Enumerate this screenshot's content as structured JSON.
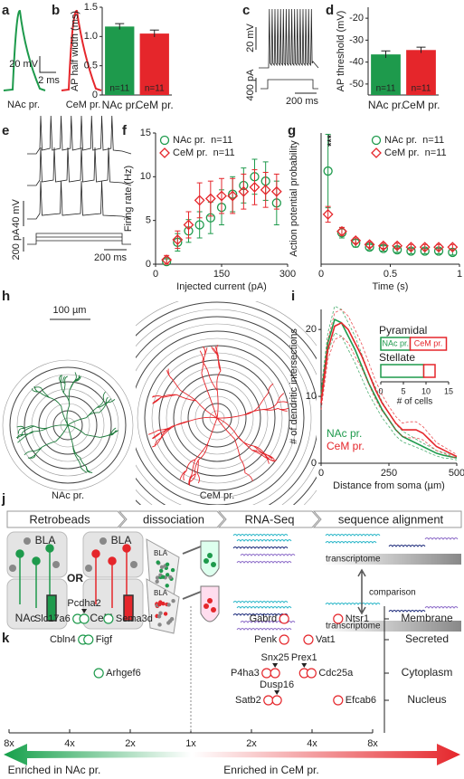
{
  "panel_labels": [
    "a",
    "b",
    "c",
    "d",
    "e",
    "f",
    "g",
    "h",
    "i",
    "j",
    "k"
  ],
  "traces": {
    "a": {
      "scale_v": "20 mV",
      "scale_t": "2 ms",
      "labels": [
        "NAc pr.",
        "CeM pr."
      ]
    },
    "c": {
      "scale_v": "20 mV",
      "scale_i": "400 pA",
      "scale_t": "200 ms"
    },
    "e": {
      "scale_v": "40 mV",
      "scale_i": "200 pA",
      "scale_t": "200 ms"
    }
  },
  "morphology": {
    "scale": "100 µm",
    "labels": [
      "NAc pr.",
      "CeM pr."
    ]
  },
  "workflow": {
    "steps": [
      "Retrobeads",
      "dissociation",
      "RNA-Seq",
      "sequence alignment"
    ],
    "regions": [
      "BLA",
      "NAc",
      "BLA",
      "CeM"
    ],
    "or": "OR",
    "slices": [
      "BLA",
      "BLA"
    ],
    "reference": [
      "transcriptome",
      "transcriptome"
    ],
    "comparison": "comparison"
  },
  "chart_data": [
    {
      "type": "bar",
      "y_label": "AP half width (ms)",
      "categories": [
        "NAc pr.",
        "CeM pr."
      ],
      "values": [
        1.17,
        1.05
      ],
      "errors": [
        0.05,
        0.06
      ],
      "colors": [
        "#1e9a4c",
        "#e5262b"
      ],
      "bar_labels": [
        "n=11",
        "n=11"
      ],
      "ylim": [
        0,
        1.5
      ],
      "yticks": [
        0,
        0.5,
        {
          "value": 1,
          "label": "1.0"
        },
        1.5
      ]
    },
    {
      "type": "bar",
      "y_label": "AP threshold (mV)",
      "categories": [
        "NAc pr.",
        "CeM pr."
      ],
      "values": [
        -36.5,
        -34.5
      ],
      "errors": [
        1.6,
        1.3
      ],
      "colors": [
        "#1e9a4c",
        "#e5262b"
      ],
      "bar_labels": [
        "n=11",
        "n=11"
      ],
      "ylim": [
        -55,
        -15
      ],
      "yticks": [
        -50,
        -40,
        -30,
        -20
      ]
    },
    {
      "type": "line",
      "x_label": "Injected current (pA)",
      "y_label": "Firing rate (Hz)",
      "legend": "upper left",
      "x": [
        25,
        50,
        75,
        100,
        125,
        150,
        175,
        200,
        225,
        250,
        275
      ],
      "series": [
        {
          "name": "NAc pr.  n=11",
          "color": "#1e9a4c",
          "marker": "circle",
          "values": [
            0.3,
            2.5,
            3.8,
            4.5,
            5.3,
            6.5,
            8,
            9,
            10,
            9.5,
            7
          ],
          "errors": [
            0.3,
            1,
            1.3,
            1.5,
            1.8,
            2,
            2,
            2,
            2,
            2.2,
            2.5
          ]
        },
        {
          "name": "CeM pr.  n=11",
          "color": "#e5262b",
          "marker": "diamond",
          "values": [
            0.5,
            2.8,
            4.5,
            7.3,
            7.5,
            7.8,
            7.8,
            8.3,
            8.8,
            8.5,
            8.3
          ],
          "errors": [
            0.5,
            1,
            1.5,
            2,
            2,
            2,
            2,
            2,
            2,
            2,
            2
          ]
        }
      ],
      "xlim": [
        0,
        300
      ],
      "xticks": [
        0,
        150,
        300
      ],
      "ylim": [
        0,
        15
      ],
      "yticks": [
        0,
        5,
        10,
        15
      ]
    },
    {
      "type": "line",
      "x_label": "Time (s)",
      "y_label": "Action potential probability",
      "annotation": "***",
      "legend": "upper right",
      "x": [
        0.05,
        0.15,
        0.25,
        0.35,
        0.45,
        0.55,
        0.65,
        0.75,
        0.85,
        0.95
      ],
      "series": [
        {
          "name": "NAc pr.  n=11",
          "color": "#1e9a4c",
          "marker": "circle",
          "values": [
            0.71,
            0.24,
            0.16,
            0.13,
            0.12,
            0.11,
            0.1,
            0.1,
            0.1,
            0.09
          ],
          "errors": [
            0.28,
            0.04,
            0.03,
            0.02,
            0.02,
            0.02,
            0.02,
            0.02,
            0.02,
            0.02
          ]
        },
        {
          "name": "CeM pr.  n=11",
          "color": "#e5262b",
          "marker": "diamond",
          "values": [
            0.38,
            0.25,
            0.18,
            0.15,
            0.14,
            0.14,
            0.13,
            0.13,
            0.13,
            0.13
          ],
          "errors": [
            0.06,
            0.03,
            0.02,
            0.02,
            0.02,
            0.02,
            0.02,
            0.02,
            0.02,
            0.02
          ]
        }
      ],
      "xlim": [
        0,
        1
      ],
      "xticks": [
        0,
        0.5,
        1
      ],
      "ylim": [
        0,
        1
      ]
    },
    {
      "type": "line",
      "x_label": "Distance from soma (µm)",
      "y_label": "# of dendritic intersections",
      "legend": "lower left",
      "x": [
        0,
        25,
        50,
        75,
        100,
        125,
        150,
        175,
        200,
        225,
        250,
        275,
        300,
        325,
        350,
        375,
        400,
        425,
        450,
        475,
        500
      ],
      "series": [
        {
          "name": "NAc pr.",
          "color": "#1e9a4c",
          "values": [
            10,
            18,
            21.5,
            21,
            19,
            17,
            14.5,
            12,
            10,
            8,
            6.5,
            5,
            4,
            3.5,
            3,
            2.5,
            2,
            1.5,
            1.2,
            1,
            0.8
          ],
          "errors": [
            1,
            1.5,
            2,
            2,
            2,
            2,
            1.8,
            1.6,
            1.4,
            1.2,
            1,
            0.9,
            0.8,
            0.7,
            0.6,
            0.5,
            0.5,
            0.4,
            0.4,
            0.3,
            0.3
          ]
        },
        {
          "name": "CeM pr.",
          "color": "#e5262b",
          "values": [
            9,
            17,
            20.5,
            21,
            20,
            18,
            16,
            13.5,
            11,
            9,
            7.5,
            6,
            5,
            5,
            5,
            4.5,
            3.5,
            2.5,
            2,
            1.5,
            1
          ],
          "errors": [
            1,
            1.5,
            2,
            2,
            2,
            2,
            1.8,
            1.6,
            1.4,
            1.2,
            1,
            1,
            1,
            1.2,
            1.2,
            1,
            0.8,
            0.6,
            0.5,
            0.4,
            0.3
          ]
        }
      ],
      "xlim": [
        0,
        500
      ],
      "xticks": [
        0,
        250,
        500
      ],
      "ylim": [
        0,
        23
      ],
      "yticks": [
        0,
        10,
        20
      ]
    },
    {
      "type": "stacked_barh",
      "x_label": "# of cells",
      "categories": [
        "Pyramidal",
        "Stellate"
      ],
      "series": [
        {
          "name": "NAc pr.",
          "color": "#1e9a4c",
          "values": [
            6.5,
            9.5
          ]
        },
        {
          "name": "CeM pr.",
          "color": "#e5262b",
          "values": [
            8,
            2.5
          ]
        }
      ],
      "xlim": [
        0,
        15
      ],
      "xticks": [
        0,
        5,
        10,
        15
      ]
    },
    {
      "type": "gene_scatter",
      "x_labels": [
        "Enriched in NAc pr.",
        "Enriched in CeM pr."
      ],
      "colors": [
        "#1e9a4c",
        "#e5262b"
      ],
      "xlim": [
        -3,
        3
      ],
      "xticks": [
        {
          "value": -3,
          "label": "8x"
        },
        {
          "value": -2,
          "label": "4x"
        },
        {
          "value": -1,
          "label": "2x"
        },
        {
          "value": 0,
          "label": "1x"
        },
        {
          "value": 1,
          "label": "2x"
        },
        {
          "value": 2,
          "label": "4x"
        },
        {
          "value": 3,
          "label": "8x"
        }
      ],
      "rows": [
        {
          "name": "Membrane",
          "genes": [
            {
              "name": "Slc17a6",
              "value": -1.87
            },
            {
              "name": "Pcdha2",
              "value": -1.76
            },
            {
              "name": "Sema3d",
              "value": -1.36
            },
            {
              "name": "Gabrd",
              "value": 1.54
            },
            {
              "name": "Ntsr1",
              "value": 2.43
            }
          ]
        },
        {
          "name": "Secreted",
          "genes": [
            {
              "name": "Cbln4",
              "value": -1.78
            },
            {
              "name": "Figf",
              "value": -1.69
            },
            {
              "name": "Penk",
              "value": 1.54
            },
            {
              "name": "Vat1",
              "value": 1.94
            }
          ]
        },
        {
          "name": "Cytoplasm",
          "genes": [
            {
              "name": "Arhgef6",
              "value": -1.52
            },
            {
              "name": "P4ha3",
              "value": 1.25
            },
            {
              "name": "Snx25",
              "value": 1.39
            },
            {
              "name": "Prex1",
              "value": 1.87
            },
            {
              "name": "Cdc25a",
              "value": 1.99
            }
          ]
        },
        {
          "name": "Nucleus",
          "genes": [
            {
              "name": "Satb2",
              "value": 1.28
            },
            {
              "name": "Dusp16",
              "value": 1.42
            },
            {
              "name": "Efcab6",
              "value": 2.43
            }
          ]
        }
      ]
    }
  ]
}
